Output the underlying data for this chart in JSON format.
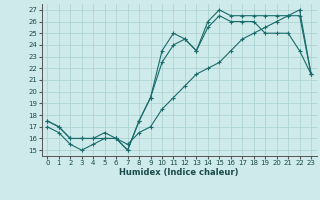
{
  "xlabel": "Humidex (Indice chaleur)",
  "bg_color": "#ceeaea",
  "line_color": "#1a6b6b",
  "grid_color": "#aacfcf",
  "xlim": [
    -0.5,
    23.5
  ],
  "ylim": [
    14.5,
    27.5
  ],
  "xticks": [
    0,
    1,
    2,
    3,
    4,
    5,
    6,
    7,
    8,
    9,
    10,
    11,
    12,
    13,
    14,
    15,
    16,
    17,
    18,
    19,
    20,
    21,
    22,
    23
  ],
  "yticks": [
    15,
    16,
    17,
    18,
    19,
    20,
    21,
    22,
    23,
    24,
    25,
    26,
    27
  ],
  "line1_x": [
    0,
    1,
    2,
    3,
    4,
    5,
    6,
    7,
    8,
    9,
    10,
    11,
    12,
    13,
    14,
    15,
    16,
    17,
    18,
    19,
    20,
    21,
    22,
    23
  ],
  "line1_y": [
    17.5,
    17.0,
    16.0,
    16.0,
    16.0,
    16.0,
    16.0,
    15.0,
    17.5,
    19.5,
    23.5,
    25.0,
    24.5,
    23.5,
    26.0,
    27.0,
    26.5,
    26.5,
    26.5,
    26.5,
    26.5,
    26.5,
    26.5,
    21.5
  ],
  "line2_x": [
    0,
    1,
    2,
    3,
    4,
    5,
    6,
    7,
    8,
    9,
    10,
    11,
    12,
    13,
    14,
    15,
    16,
    17,
    18,
    19,
    20,
    21,
    22,
    23
  ],
  "line2_y": [
    17.5,
    17.0,
    16.0,
    16.0,
    16.0,
    16.5,
    16.0,
    15.0,
    17.5,
    19.5,
    22.5,
    24.0,
    24.5,
    23.5,
    25.5,
    26.5,
    26.0,
    26.0,
    26.0,
    25.0,
    25.0,
    25.0,
    23.5,
    21.5
  ],
  "line3_x": [
    0,
    1,
    2,
    3,
    4,
    5,
    6,
    7,
    8,
    9,
    10,
    11,
    12,
    13,
    14,
    15,
    16,
    17,
    18,
    19,
    20,
    21,
    22,
    23
  ],
  "line3_y": [
    17.0,
    16.5,
    15.5,
    15.0,
    15.5,
    16.0,
    16.0,
    15.5,
    16.5,
    17.0,
    18.5,
    19.5,
    20.5,
    21.5,
    22.0,
    22.5,
    23.5,
    24.5,
    25.0,
    25.5,
    26.0,
    26.5,
    27.0,
    21.5
  ]
}
